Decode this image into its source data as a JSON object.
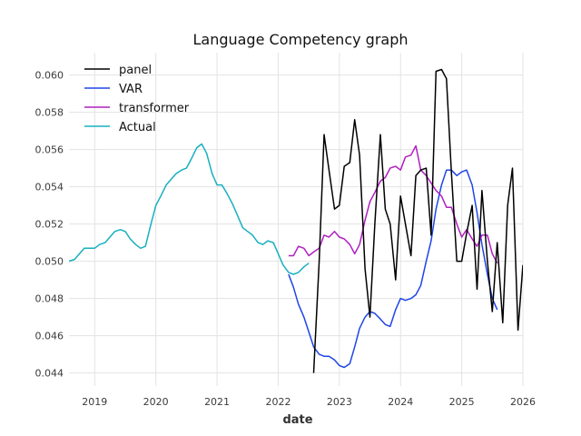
{
  "chart_data": {
    "type": "line",
    "title": "Language Competency graph",
    "xlabel": "date",
    "ylabel": "",
    "xlim": [
      2018.58,
      2026.0
    ],
    "ylim": [
      0.0433,
      0.0612
    ],
    "x_ticks": [
      {
        "value": 2019,
        "label": "2019"
      },
      {
        "value": 2020,
        "label": "2020"
      },
      {
        "value": 2021,
        "label": "2021"
      },
      {
        "value": 2022,
        "label": "2022"
      },
      {
        "value": 2023,
        "label": "2023"
      },
      {
        "value": 2024,
        "label": "2024"
      },
      {
        "value": 2025,
        "label": "2025"
      },
      {
        "value": 2026,
        "label": "2026"
      }
    ],
    "y_ticks": [
      {
        "value": 0.044,
        "label": "0.044"
      },
      {
        "value": 0.046,
        "label": "0.046"
      },
      {
        "value": 0.048,
        "label": "0.048"
      },
      {
        "value": 0.05,
        "label": "0.050"
      },
      {
        "value": 0.052,
        "label": "0.052"
      },
      {
        "value": 0.054,
        "label": "0.054"
      },
      {
        "value": 0.056,
        "label": "0.056"
      },
      {
        "value": 0.058,
        "label": "0.058"
      },
      {
        "value": 0.06,
        "label": "0.060"
      }
    ],
    "grid": true,
    "legend_position": "top-left",
    "series": [
      {
        "name": "panel",
        "color": "#000000",
        "points": [
          [
            2022.58,
            0.044
          ],
          [
            2022.67,
            0.05
          ],
          [
            2022.75,
            0.0568
          ],
          [
            2022.83,
            0.0549
          ],
          [
            2022.92,
            0.0528
          ],
          [
            2023.0,
            0.053
          ],
          [
            2023.08,
            0.0551
          ],
          [
            2023.17,
            0.0553
          ],
          [
            2023.25,
            0.0576
          ],
          [
            2023.33,
            0.0557
          ],
          [
            2023.42,
            0.0496
          ],
          [
            2023.5,
            0.047
          ],
          [
            2023.58,
            0.052
          ],
          [
            2023.67,
            0.0568
          ],
          [
            2023.75,
            0.0528
          ],
          [
            2023.83,
            0.052
          ],
          [
            2023.92,
            0.049
          ],
          [
            2024.0,
            0.0535
          ],
          [
            2024.08,
            0.052
          ],
          [
            2024.17,
            0.0503
          ],
          [
            2024.25,
            0.0546
          ],
          [
            2024.33,
            0.0549
          ],
          [
            2024.42,
            0.055
          ],
          [
            2024.5,
            0.0514
          ],
          [
            2024.58,
            0.0602
          ],
          [
            2024.67,
            0.0603
          ],
          [
            2024.75,
            0.0598
          ],
          [
            2024.83,
            0.0548
          ],
          [
            2024.92,
            0.05
          ],
          [
            2025.0,
            0.05
          ],
          [
            2025.08,
            0.0515
          ],
          [
            2025.17,
            0.053
          ],
          [
            2025.25,
            0.0485
          ],
          [
            2025.33,
            0.0538
          ],
          [
            2025.42,
            0.05
          ],
          [
            2025.5,
            0.0473
          ],
          [
            2025.58,
            0.051
          ],
          [
            2025.67,
            0.0467
          ],
          [
            2025.75,
            0.053
          ],
          [
            2025.83,
            0.055
          ],
          [
            2025.92,
            0.0463
          ],
          [
            2026.0,
            0.0498
          ]
        ]
      },
      {
        "name": "VAR",
        "color": "#1f45e8",
        "points": [
          [
            2022.17,
            0.0493
          ],
          [
            2022.25,
            0.0486
          ],
          [
            2022.33,
            0.0477
          ],
          [
            2022.42,
            0.047
          ],
          [
            2022.5,
            0.0462
          ],
          [
            2022.58,
            0.0454
          ],
          [
            2022.67,
            0.045
          ],
          [
            2022.75,
            0.0449
          ],
          [
            2022.83,
            0.0449
          ],
          [
            2022.92,
            0.0447
          ],
          [
            2023.0,
            0.0444
          ],
          [
            2023.08,
            0.0443
          ],
          [
            2023.17,
            0.0445
          ],
          [
            2023.25,
            0.0454
          ],
          [
            2023.33,
            0.0464
          ],
          [
            2023.42,
            0.047
          ],
          [
            2023.5,
            0.0473
          ],
          [
            2023.58,
            0.0472
          ],
          [
            2023.67,
            0.0469
          ],
          [
            2023.75,
            0.0466
          ],
          [
            2023.83,
            0.0465
          ],
          [
            2023.92,
            0.0474
          ],
          [
            2024.0,
            0.048
          ],
          [
            2024.08,
            0.0479
          ],
          [
            2024.17,
            0.048
          ],
          [
            2024.25,
            0.0482
          ],
          [
            2024.33,
            0.0487
          ],
          [
            2024.42,
            0.05
          ],
          [
            2024.5,
            0.0511
          ],
          [
            2024.58,
            0.0528
          ],
          [
            2024.67,
            0.0541
          ],
          [
            2024.75,
            0.0549
          ],
          [
            2024.83,
            0.0549
          ],
          [
            2024.92,
            0.0546
          ],
          [
            2025.0,
            0.0548
          ],
          [
            2025.08,
            0.0549
          ],
          [
            2025.17,
            0.0541
          ],
          [
            2025.25,
            0.0526
          ],
          [
            2025.33,
            0.0509
          ],
          [
            2025.42,
            0.0493
          ],
          [
            2025.5,
            0.048
          ],
          [
            2025.58,
            0.0474
          ]
        ]
      },
      {
        "name": "transformer",
        "color": "#b020c0",
        "points": [
          [
            2022.17,
            0.0503
          ],
          [
            2022.25,
            0.0503
          ],
          [
            2022.33,
            0.0508
          ],
          [
            2022.42,
            0.0507
          ],
          [
            2022.5,
            0.0503
          ],
          [
            2022.58,
            0.0505
          ],
          [
            2022.67,
            0.0507
          ],
          [
            2022.75,
            0.0514
          ],
          [
            2022.83,
            0.0513
          ],
          [
            2022.92,
            0.0516
          ],
          [
            2023.0,
            0.0513
          ],
          [
            2023.08,
            0.0512
          ],
          [
            2023.17,
            0.0509
          ],
          [
            2023.25,
            0.0504
          ],
          [
            2023.33,
            0.0509
          ],
          [
            2023.42,
            0.0522
          ],
          [
            2023.5,
            0.0532
          ],
          [
            2023.58,
            0.0537
          ],
          [
            2023.67,
            0.0543
          ],
          [
            2023.75,
            0.0545
          ],
          [
            2023.83,
            0.055
          ],
          [
            2023.92,
            0.0551
          ],
          [
            2024.0,
            0.0549
          ],
          [
            2024.08,
            0.0556
          ],
          [
            2024.17,
            0.0557
          ],
          [
            2024.25,
            0.0562
          ],
          [
            2024.33,
            0.0549
          ],
          [
            2024.42,
            0.0546
          ],
          [
            2024.5,
            0.0542
          ],
          [
            2024.58,
            0.0538
          ],
          [
            2024.67,
            0.0535
          ],
          [
            2024.75,
            0.0529
          ],
          [
            2024.83,
            0.0529
          ],
          [
            2024.92,
            0.052
          ],
          [
            2025.0,
            0.0513
          ],
          [
            2025.08,
            0.0517
          ],
          [
            2025.17,
            0.0512
          ],
          [
            2025.25,
            0.0508
          ],
          [
            2025.33,
            0.0514
          ],
          [
            2025.42,
            0.0514
          ],
          [
            2025.5,
            0.0504
          ],
          [
            2025.58,
            0.0499
          ]
        ]
      },
      {
        "name": "Actual",
        "color": "#17b0c0",
        "points": [
          [
            2018.58,
            0.05
          ],
          [
            2018.67,
            0.0501
          ],
          [
            2018.75,
            0.0504
          ],
          [
            2018.83,
            0.0507
          ],
          [
            2018.92,
            0.0507
          ],
          [
            2019.0,
            0.0507
          ],
          [
            2019.08,
            0.0509
          ],
          [
            2019.17,
            0.051
          ],
          [
            2019.25,
            0.0513
          ],
          [
            2019.33,
            0.0516
          ],
          [
            2019.42,
            0.0517
          ],
          [
            2019.5,
            0.0516
          ],
          [
            2019.58,
            0.0512
          ],
          [
            2019.67,
            0.0509
          ],
          [
            2019.75,
            0.0507
          ],
          [
            2019.83,
            0.0508
          ],
          [
            2019.92,
            0.052
          ],
          [
            2020.0,
            0.053
          ],
          [
            2020.08,
            0.0535
          ],
          [
            2020.17,
            0.0541
          ],
          [
            2020.25,
            0.0544
          ],
          [
            2020.33,
            0.0547
          ],
          [
            2020.42,
            0.0549
          ],
          [
            2020.5,
            0.055
          ],
          [
            2020.58,
            0.0555
          ],
          [
            2020.67,
            0.0561
          ],
          [
            2020.75,
            0.0563
          ],
          [
            2020.83,
            0.0558
          ],
          [
            2020.92,
            0.0547
          ],
          [
            2021.0,
            0.0541
          ],
          [
            2021.08,
            0.0541
          ],
          [
            2021.17,
            0.0536
          ],
          [
            2021.25,
            0.0531
          ],
          [
            2021.33,
            0.0525
          ],
          [
            2021.42,
            0.0518
          ],
          [
            2021.5,
            0.0516
          ],
          [
            2021.58,
            0.0514
          ],
          [
            2021.67,
            0.051
          ],
          [
            2021.75,
            0.0509
          ],
          [
            2021.83,
            0.0511
          ],
          [
            2021.92,
            0.051
          ],
          [
            2022.0,
            0.0504
          ],
          [
            2022.08,
            0.0498
          ],
          [
            2022.17,
            0.0494
          ],
          [
            2022.25,
            0.0493
          ],
          [
            2022.33,
            0.0494
          ],
          [
            2022.42,
            0.0497
          ],
          [
            2022.5,
            0.0499
          ]
        ]
      }
    ]
  }
}
